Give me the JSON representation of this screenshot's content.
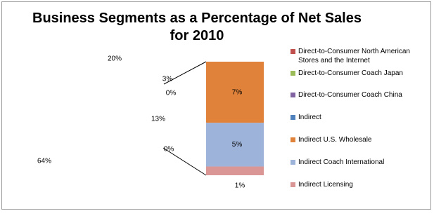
{
  "chart_data": {
    "type": "bar-of-pie",
    "title": "Business Segments as a Percentage of Net Sales for 2010",
    "pie_values": [
      20,
      3,
      0,
      13,
      0,
      64
    ],
    "pie_value_labels": [
      "20%",
      "3%",
      "0%",
      "13%",
      "0%",
      "64%"
    ],
    "bar_values": [
      7,
      5,
      1
    ],
    "bar_value_labels": [
      "7%",
      "5%",
      "1%"
    ],
    "bar_colors": [
      "#e0823a",
      "#9db3d9",
      "#d99694"
    ],
    "legend": [
      {
        "name": "Direct-to-Consumer North American Stores and the Internet",
        "color": "#c0504d"
      },
      {
        "name": "Direct-to-Consumer Coach Japan",
        "color": "#9bbb59"
      },
      {
        "name": "Direct-to-Consumer Coach China",
        "color": "#8064a2"
      },
      {
        "name": "Indirect",
        "color": "#4f81bd"
      },
      {
        "name": "Indirect U.S. Wholesale",
        "color": "#e0823a"
      },
      {
        "name": "Indirect Coach International",
        "color": "#9db3d9"
      },
      {
        "name": "Indirect Licensing",
        "color": "#d99694"
      }
    ]
  }
}
